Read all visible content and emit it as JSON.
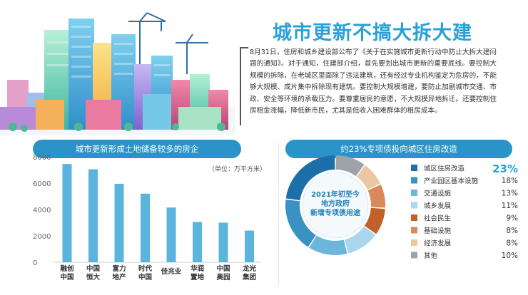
{
  "header": {
    "title": "城市更新不搞大拆大建",
    "article": "8月31日，住房和城乡建设部公布了《关于在实施城市更新行动中防止大拆大建问题的通知》。对于通知，住建部介绍，首先要划出城市更新的重要底线。要控制大规模的拆除，在老城区里面除了违法建筑，还有经过专业机构鉴定为危房的，不能够大规模、成片集中拆除现有建筑。要控制大规模增建，要防止加剧城市交通、市政、安全等环境的承载压力。要尊重居民的意愿，不大规模异地拆迁。还要控制住房租金涨幅，降低新市民，尤其是低收入困难群体的租房成本。"
  },
  "colors": {
    "accent": "#2aa0d8",
    "header_bar": "#2a94c9",
    "bar": "#5ab4db"
  },
  "chart_data": [
    {
      "type": "bar",
      "title": "城市更新形成土地储备较多的房企",
      "unit": "（单位：万平方米）",
      "categories": [
        "融创\n中国",
        "中国\n恒大",
        "富力\n地产",
        "时代\n中国",
        "佳兆业",
        "华润\n置地",
        "中国\n奥园",
        "龙光\n集团"
      ],
      "values": [
        7450,
        7050,
        5950,
        5200,
        4150,
        3050,
        3000,
        2400
      ],
      "ylim": [
        0,
        8000
      ],
      "yticks": [
        0,
        2000,
        4000,
        6000,
        8000
      ],
      "grid": false
    },
    {
      "type": "pie",
      "title": "约23%专项债投向城区住房改造",
      "center_label": "2021年初至今\n地方政府\n新增专项债用途",
      "slices": [
        {
          "label": "城区住房改造",
          "pct": "23%",
          "value": 23,
          "color": "#1c6fa8"
        },
        {
          "label": "产业园区基本设施",
          "pct": "18%",
          "value": 18,
          "color": "#3a92c4"
        },
        {
          "label": "交通设施",
          "pct": "13%",
          "value": 13,
          "color": "#6cb6dc"
        },
        {
          "label": "城乡发展",
          "pct": "11%",
          "value": 11,
          "color": "#a9d7ee"
        },
        {
          "label": "社会民生",
          "pct": "9%",
          "value": 9,
          "color": "#c2602a"
        },
        {
          "label": "基础设施",
          "pct": "8%",
          "value": 8,
          "color": "#d9895a"
        },
        {
          "label": "经济发展",
          "pct": "8%",
          "value": 8,
          "color": "#ecc7a4"
        },
        {
          "label": "其他",
          "pct": "10%",
          "value": 10,
          "color": "#9ea3a8"
        }
      ]
    }
  ]
}
